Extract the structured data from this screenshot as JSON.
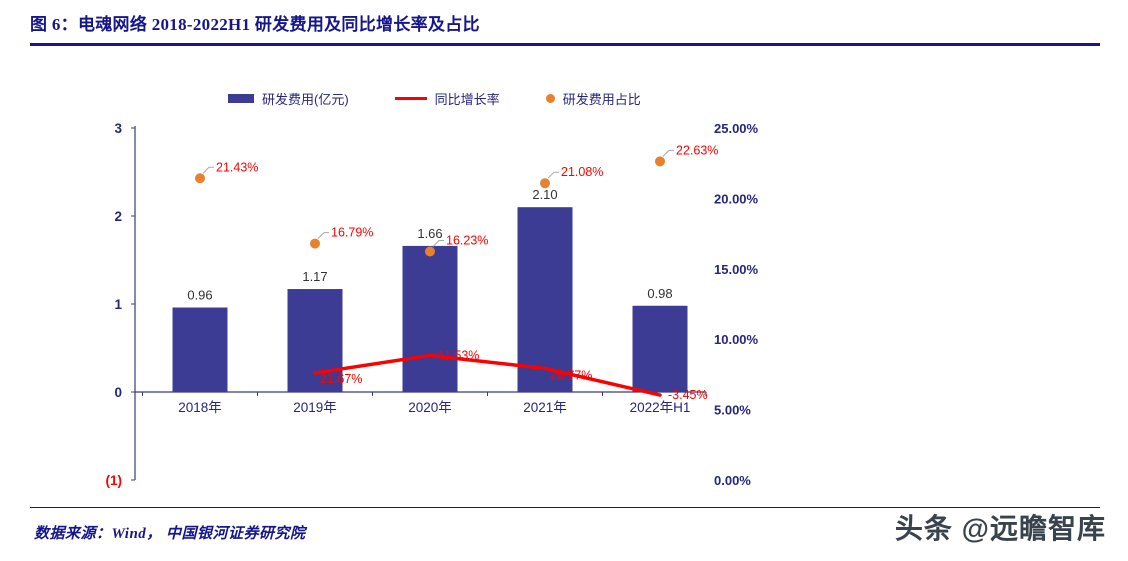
{
  "header": {
    "title": "图 6：电魂网络 2018-2022H1 研发费用及同比增长率及占比"
  },
  "legend": {
    "items": [
      {
        "label": "研发费用(亿元)",
        "swatch": "bar",
        "color": "#3c3c94"
      },
      {
        "label": "同比增长率",
        "swatch": "line",
        "color": "#fe0000"
      },
      {
        "label": "研发费用占比",
        "swatch": "dot",
        "color": "#e8802d"
      }
    ]
  },
  "chart_data": {
    "type": "combo-bar-line-scatter",
    "title": "电魂网络 2018-2022H1 研发费用及同比增长率及占比",
    "categories": [
      "2018年",
      "2019年",
      "2020年",
      "2021年",
      "2022年H1"
    ],
    "series": [
      {
        "name": "研发费用(亿元)",
        "type": "bar",
        "axis": "left",
        "color": "#3c3c94",
        "values": [
          0.96,
          1.17,
          1.66,
          2.1,
          0.98
        ]
      },
      {
        "name": "同比增长率",
        "type": "line",
        "axis": "percent",
        "color": "#fe0000",
        "values_pct": [
          null,
          21.67,
          41.53,
          26.77,
          -3.45
        ]
      },
      {
        "name": "研发费用占比",
        "type": "scatter",
        "axis": "right",
        "color": "#e8802d",
        "values_pct": [
          21.43,
          16.79,
          16.23,
          21.08,
          22.63
        ]
      }
    ],
    "left_axis": {
      "min": -1,
      "max": 3,
      "ticks": [
        "3",
        "2",
        "1",
        "0",
        "(1)"
      ],
      "negative_tick_color": "#fe0000"
    },
    "right_axis": {
      "min": 0,
      "max": 25,
      "ticks": [
        "25.00%",
        "20.00%",
        "15.00%",
        "10.00%",
        "5.00%",
        "0.00%"
      ]
    },
    "grid": false,
    "legend_position": "top"
  },
  "footer": {
    "source": "数据来源：Wind， 中国银河证券研究院",
    "watermark": "头条 @远瞻智库"
  }
}
